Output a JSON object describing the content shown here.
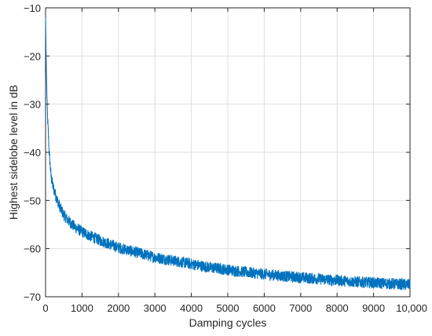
{
  "chart_data": {
    "type": "line",
    "title": "",
    "xlabel": "Damping cycles",
    "ylabel": "Highest sidelobe level in dB",
    "xlim": [
      0,
      10000
    ],
    "ylim": [
      -70,
      -10
    ],
    "grid": true,
    "line_color": "#0072BD",
    "x_tick_labels": [
      "0",
      "1000",
      "2000",
      "3000",
      "4000",
      "5000",
      "6000",
      "7000",
      "8000",
      "9000",
      "10,000"
    ],
    "y_tick_labels": [
      "−70",
      "−60",
      "−50",
      "−40",
      "−30",
      "−20",
      "−10"
    ],
    "series": [
      {
        "x": [
          0,
          20,
          50,
          100,
          150,
          200,
          300,
          400,
          500,
          600,
          800,
          1000,
          1200,
          1500,
          1800,
          2000,
          2500,
          3000,
          3500,
          4000,
          4500,
          5000,
          5500,
          6000,
          6500,
          7000,
          7500,
          8000,
          8500,
          9000,
          9500,
          10000
        ],
        "values": [
          -12,
          -22,
          -32,
          -40,
          -45,
          -47,
          -49.5,
          -51.5,
          -53,
          -54,
          -55.5,
          -56.5,
          -57.3,
          -58.3,
          -59.2,
          -59.8,
          -60.8,
          -61.8,
          -62.5,
          -63.2,
          -63.9,
          -64.4,
          -64.9,
          -65.3,
          -65.7,
          -66.0,
          -66.3,
          -66.6,
          -66.9,
          -67.1,
          -67.3,
          -67.5
        ],
        "noise_amplitude_db": 1.2
      }
    ]
  }
}
